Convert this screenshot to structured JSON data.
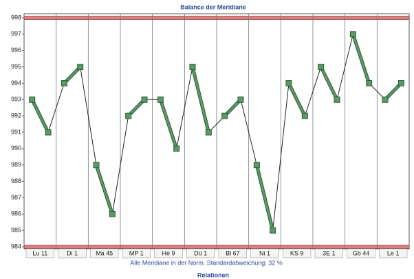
{
  "chart_data": {
    "type": "paired-line",
    "title": "Balance der Meridiane",
    "categories": [
      "Lu 11",
      "Di 1",
      "Ma 45",
      "MP 1",
      "He 9",
      "Dü 1",
      "Bl 67",
      "Ni 1",
      "KS 9",
      "3E 1",
      "Gb 44",
      "Le 1"
    ],
    "values": [
      [
        993,
        991
      ],
      [
        994,
        995
      ],
      [
        989,
        986
      ],
      [
        992,
        993
      ],
      [
        993,
        990
      ],
      [
        995,
        991
      ],
      [
        992,
        993
      ],
      [
        989,
        985
      ],
      [
        994,
        992
      ],
      [
        995,
        993
      ],
      [
        997,
        994
      ],
      [
        993,
        994
      ]
    ],
    "color": "#5a9a6a",
    "ylim": [
      984,
      998
    ],
    "yticks": [
      984,
      985,
      986,
      987,
      988,
      989,
      990,
      991,
      992,
      993,
      994,
      995,
      996,
      997,
      998
    ],
    "note": "Alle Meridiane in der Norm. Standardabweichung: 32 %",
    "next_title": "Relationen"
  }
}
